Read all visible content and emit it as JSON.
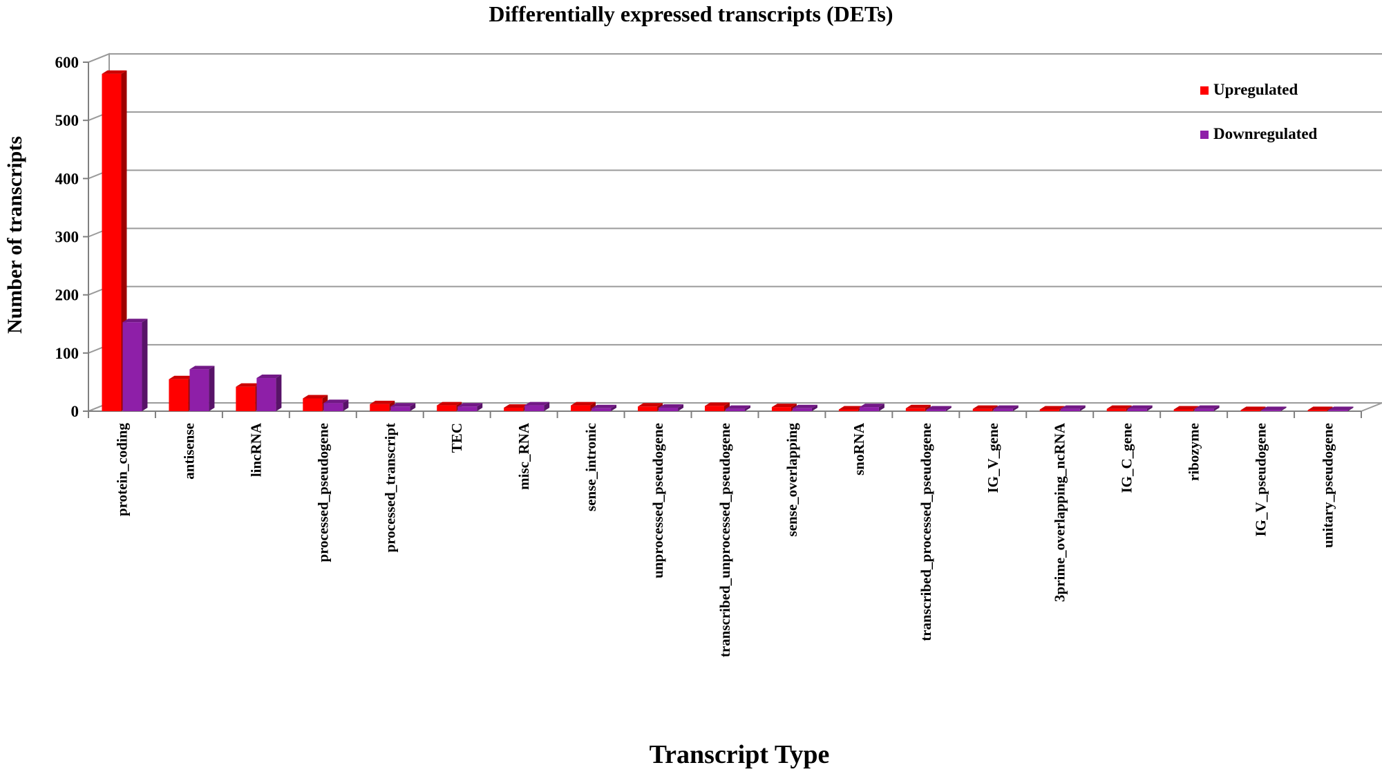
{
  "chart_data": {
    "type": "bar",
    "title": "Differentially  expressed  transcripts  (DETs)",
    "xlabel": "Transcript Type",
    "ylabel": "Number  of transcripts",
    "ylim": [
      0,
      600
    ],
    "yticks": [
      "0",
      "100",
      "200",
      "300",
      "400",
      "500",
      "600"
    ],
    "grid": true,
    "legend_position": "top-right",
    "categories": [
      "protein_coding",
      "antisense",
      "lincRNA",
      "processed_pseudogene",
      "processed_transcript",
      "TEC",
      "misc_RNA",
      "sense_intronic",
      "unprocessed_pseudogene",
      "transcribed_unprocessed_pseudogene",
      "sense_overlapping",
      "snoRNA",
      "transcribed_processed_pseudogene",
      "IG_V_gene",
      "3prime_overlapping_ncRNA",
      "IG_C_gene",
      "ribozyme",
      "IG_V_pseudogene",
      "unitary_pseudogene"
    ],
    "series": [
      {
        "name": "Upregulated",
        "color": "#ff0000",
        "values": [
          580,
          55,
          42,
          22,
          12,
          10,
          6,
          10,
          8,
          9,
          7,
          3,
          5,
          4,
          3,
          4,
          3,
          2,
          2
        ]
      },
      {
        "name": "Downregulated",
        "color": "#8e1fa8",
        "values": [
          153,
          72,
          57,
          14,
          8,
          8,
          10,
          5,
          6,
          4,
          5,
          7,
          3,
          4,
          4,
          4,
          4,
          2,
          2
        ]
      }
    ]
  }
}
